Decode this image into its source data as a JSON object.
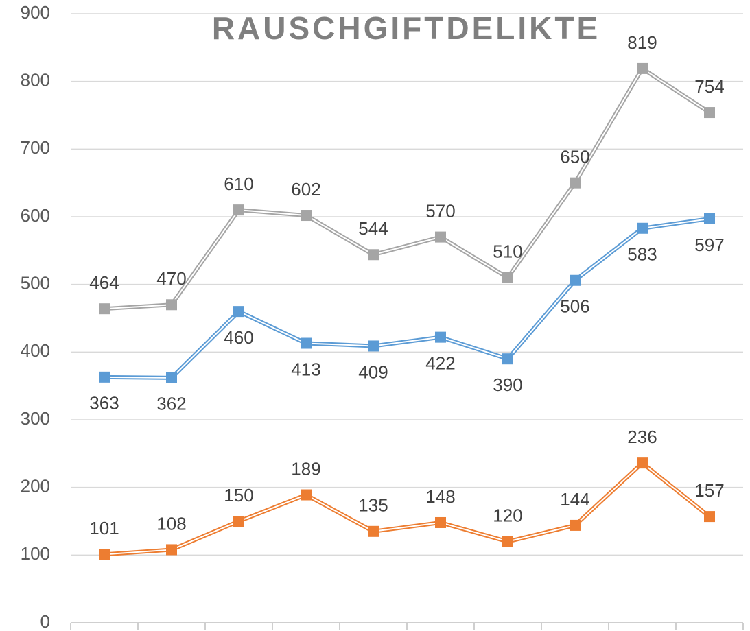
{
  "chart_data": {
    "type": "line",
    "title": "RAUSCHGIFTDELIKTE",
    "categories": [
      null,
      null,
      null,
      null,
      null,
      null,
      null,
      null,
      null,
      null
    ],
    "series": [
      {
        "color": "#a5a5a5",
        "values": [
          464,
          470,
          610,
          602,
          544,
          570,
          510,
          650,
          819,
          754
        ]
      },
      {
        "color": "#5b9bd5",
        "values": [
          363,
          362,
          460,
          413,
          409,
          422,
          390,
          506,
          583,
          597
        ]
      },
      {
        "color": "#ed7d31",
        "values": [
          101,
          108,
          150,
          189,
          135,
          148,
          120,
          144,
          236,
          157
        ]
      }
    ],
    "ylim": [
      0,
      900
    ],
    "yticks": [
      0,
      100,
      200,
      300,
      400,
      500,
      600,
      700,
      800,
      900
    ],
    "grid": true
  }
}
